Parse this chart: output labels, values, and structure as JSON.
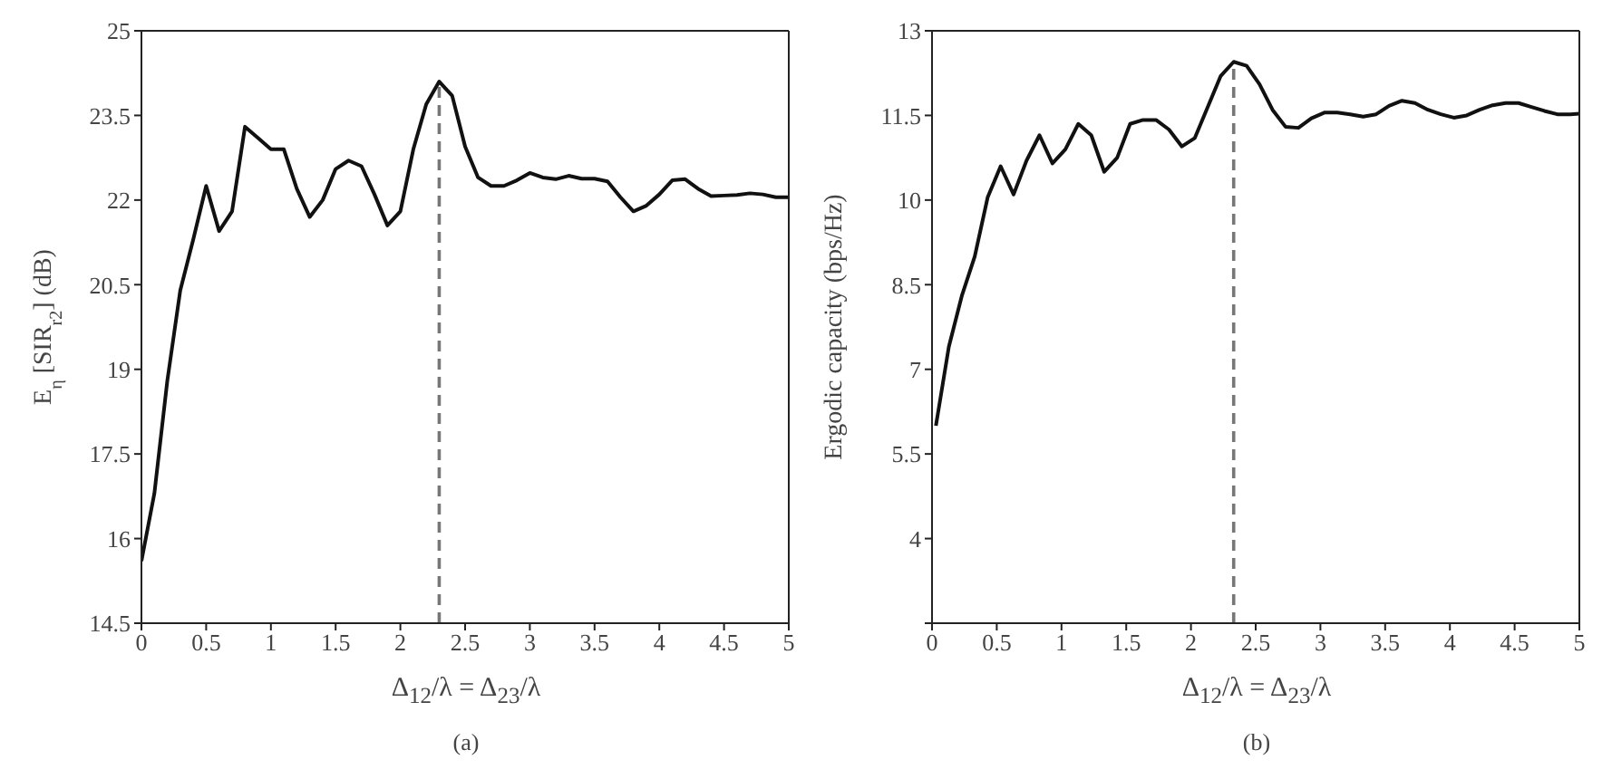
{
  "chart_data": [
    {
      "type": "line",
      "xlabel": "Δ$_{12}$/λ = Δ$_{23}$/λ",
      "ylabel": "E$_{η}$ [SIR$_{r2}$] (dB)",
      "annotations": [
        "(a)"
      ],
      "xlim": [
        0,
        5
      ],
      "xticks": [
        0,
        0.5,
        1,
        1.5,
        2,
        2.5,
        3,
        3.5,
        4,
        4.5,
        5
      ],
      "ylim": [
        14.5,
        25
      ],
      "yticks": [
        14.5,
        16,
        17.5,
        19,
        20.5,
        22,
        23.5,
        25
      ],
      "grid": false,
      "marker": "none",
      "ref_lines": [
        {
          "axis": "x",
          "value": 2.3,
          "color": "#777777",
          "line_style": "dashed"
        }
      ],
      "x": [
        0,
        0.1,
        0.2,
        0.3,
        0.4,
        0.5,
        0.6,
        0.7,
        0.8,
        0.9,
        1,
        1.1,
        1.2,
        1.3,
        1.4,
        1.5,
        1.6,
        1.7,
        1.8,
        1.9,
        2,
        2.1,
        2.2,
        2.3,
        2.4,
        2.5,
        2.6,
        2.7,
        2.8,
        2.9,
        3,
        3.1,
        3.2,
        3.3,
        3.4,
        3.5,
        3.6,
        3.7,
        3.8,
        3.9,
        4,
        4.1,
        4.2,
        4.3,
        4.4,
        4.5,
        4.6,
        4.7,
        4.8,
        4.9,
        5
      ],
      "series": [
        {
          "color": "#111111",
          "line_style": "solid",
          "values": [
            15.6,
            16.8,
            18.8,
            20.4,
            21.3,
            22.25,
            21.45,
            21.8,
            23.3,
            23.1,
            22.9,
            22.9,
            22.2,
            21.7,
            22.0,
            22.55,
            22.7,
            22.6,
            22.1,
            21.55,
            21.8,
            22.9,
            23.7,
            24.1,
            23.85,
            22.95,
            22.4,
            22.25,
            22.25,
            22.35,
            22.48,
            22.4,
            22.37,
            22.43,
            22.38,
            22.38,
            22.33,
            22.05,
            21.8,
            21.9,
            22.1,
            22.35,
            22.37,
            22.2,
            22.07,
            22.08,
            22.09,
            22.12,
            22.1,
            22.05,
            22.05
          ]
        }
      ]
    },
    {
      "type": "line",
      "xlabel": "Δ$_{12}$/λ = Δ$_{23}$/λ",
      "ylabel": "Ergodic capacity (bps/Hz)",
      "annotations": [
        "(b)"
      ],
      "xlim": [
        0,
        5
      ],
      "xticks": [
        0,
        0.5,
        1,
        1.5,
        2,
        2.5,
        3,
        3.5,
        4,
        4.5,
        5
      ],
      "ylim": [
        2.5,
        13
      ],
      "yticks": [
        {
          "value": 2.5,
          "label": null
        },
        4,
        5.5,
        7,
        8.5,
        10,
        11.5,
        13
      ],
      "grid": false,
      "marker": "none",
      "ref_lines": [
        {
          "axis": "x",
          "value": 2.33,
          "color": "#777777",
          "line_style": "dashed"
        }
      ],
      "x": [
        0.03,
        0.13,
        0.23,
        0.33,
        0.43,
        0.53,
        0.63,
        0.73,
        0.83,
        0.93,
        1.03,
        1.13,
        1.23,
        1.33,
        1.43,
        1.53,
        1.63,
        1.73,
        1.83,
        1.93,
        2.03,
        2.13,
        2.23,
        2.33,
        2.43,
        2.53,
        2.63,
        2.73,
        2.83,
        2.93,
        3.03,
        3.13,
        3.23,
        3.33,
        3.43,
        3.53,
        3.63,
        3.73,
        3.83,
        3.93,
        4.03,
        4.13,
        4.23,
        4.33,
        4.43,
        4.53,
        4.63,
        4.73,
        4.83,
        4.93,
        5
      ],
      "series": [
        {
          "color": "#111111",
          "line_style": "solid",
          "values": [
            6.0,
            7.4,
            8.3,
            9.0,
            10.05,
            10.6,
            10.1,
            10.7,
            11.15,
            10.65,
            10.9,
            11.35,
            11.15,
            10.5,
            10.75,
            11.35,
            11.42,
            11.42,
            11.25,
            10.95,
            11.1,
            11.65,
            12.2,
            12.45,
            12.38,
            12.05,
            11.6,
            11.3,
            11.28,
            11.45,
            11.55,
            11.55,
            11.52,
            11.48,
            11.52,
            11.67,
            11.76,
            11.72,
            11.6,
            11.52,
            11.46,
            11.5,
            11.6,
            11.68,
            11.72,
            11.72,
            11.65,
            11.58,
            11.52,
            11.52,
            11.53
          ]
        }
      ]
    }
  ]
}
